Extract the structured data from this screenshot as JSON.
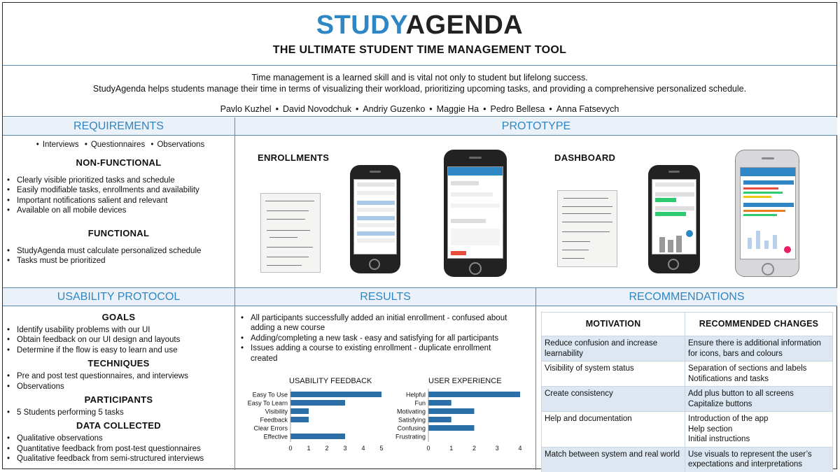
{
  "header": {
    "logo_part1": "STUDY",
    "logo_part2": "AGENDA",
    "tagline": "THE ULTIMATE STUDENT TIME MANAGEMENT TOOL"
  },
  "intro": {
    "line1": "Time management is a learned skill and is vital not only to student but lifelong success.",
    "line2": "StudyAgenda helps students manage their time in terms of visualizing their workload, prioritizing upcoming tasks, and providing a comprehensive personalized schedule.",
    "authors": [
      "Pavlo Kuzhel",
      "David  Novodchuk",
      "Andriy Guzenko",
      "Maggie Ha",
      "Pedro Bellesa",
      "Anna Fatsevych"
    ]
  },
  "requirements": {
    "title": "REQUIREMENTS",
    "methods": [
      "Interviews",
      "Questionnaires",
      "Observations"
    ],
    "nonfunctional_heading": "NON-FUNCTIONAL",
    "nonfunctional": [
      "Clearly visible prioritized tasks and schedule",
      "Easily modifiable tasks, enrollments and availability",
      "Important notifications salient and relevant",
      "Available on all mobile devices"
    ],
    "functional_heading": "FUNCTIONAL",
    "functional": [
      "StudyAgenda must calculate personalized schedule",
      "Tasks must be prioritized"
    ]
  },
  "prototype": {
    "title": "PROTOTYPE",
    "enrollments_label": "ENROLLMENTS",
    "dashboard_label": "DASHBOARD"
  },
  "usability": {
    "title": "USABILITY PROTOCOL",
    "goals_heading": "GOALS",
    "goals": [
      "Identify usability problems with our UI",
      "Obtain feedback on our UI design and layouts",
      "Determine if the flow is easy to learn and use"
    ],
    "techniques_heading": "TECHNIQUES",
    "techniques": [
      "Pre and post test questionnaires, and interviews",
      "Observations"
    ],
    "participants_heading": "PARTICIPANTS",
    "participants": [
      "5 Students performing 5 tasks"
    ],
    "data_heading": "DATA COLLECTED",
    "data": [
      "Qualitative observations",
      "Quantitative feedback from post-test questionnaires",
      "Qualitative feedback from semi-structured interviews"
    ]
  },
  "results": {
    "title": "RESULTS",
    "items": [
      "All participants successfully added an initial enrollment - confused about adding a new course",
      "Adding/completing a new task - easy and satisfying for all participants",
      "Issues adding a course to existing enrollment - duplicate enrollment created"
    ]
  },
  "chart_data": [
    {
      "type": "bar",
      "orientation": "horizontal",
      "title": "USABILITY FEEDBACK",
      "categories": [
        "Easy To Use",
        "Easy To Learn",
        "Visibility",
        "Feedback",
        "Clear Errors",
        "Effective"
      ],
      "values": [
        5,
        3,
        1,
        1,
        0,
        3
      ],
      "xlim": [
        0,
        5
      ],
      "ticks": [
        0,
        1,
        2,
        3,
        4,
        5
      ],
      "color": "#2b6fa8"
    },
    {
      "type": "bar",
      "orientation": "horizontal",
      "title": "USER EXPERIENCE",
      "categories": [
        "Helpful",
        "Fun",
        "Motivating",
        "Satisfying",
        "Confusing",
        "Frustrating"
      ],
      "values": [
        4,
        1,
        2,
        1,
        2,
        0
      ],
      "xlim": [
        0,
        4
      ],
      "ticks": [
        0,
        1,
        2,
        3,
        4
      ],
      "color": "#2b6fa8"
    }
  ],
  "recommendations": {
    "title": "RECOMMENDATIONS",
    "col1": "MOTIVATION",
    "col2": "RECOMMENDED CHANGES",
    "rows": [
      {
        "motivation": "Reduce confusion and increase learnability",
        "changes": [
          "Ensure there is additional information for icons, bars and colours"
        ]
      },
      {
        "motivation": "Visibility of system status",
        "changes": [
          "Separation of sections and labels",
          "Notifications and tasks"
        ]
      },
      {
        "motivation": "Create consistency",
        "changes": [
          "Add plus button to all screens",
          "Capitalize buttons"
        ]
      },
      {
        "motivation": "Help and documentation",
        "changes": [
          "Introduction of the app",
          "Help section",
          "Initial instructions"
        ]
      },
      {
        "motivation": "Match between system and real world",
        "changes": [
          "Use visuals to represent the user’s expectations and interpretations"
        ]
      }
    ]
  },
  "colors": {
    "accent": "#2f86c4",
    "border": "#5a8bb5",
    "panel_header_bg": "#eaf1f8",
    "table_row_shade": "#dce7f2",
    "bar": "#2b6fa8"
  }
}
